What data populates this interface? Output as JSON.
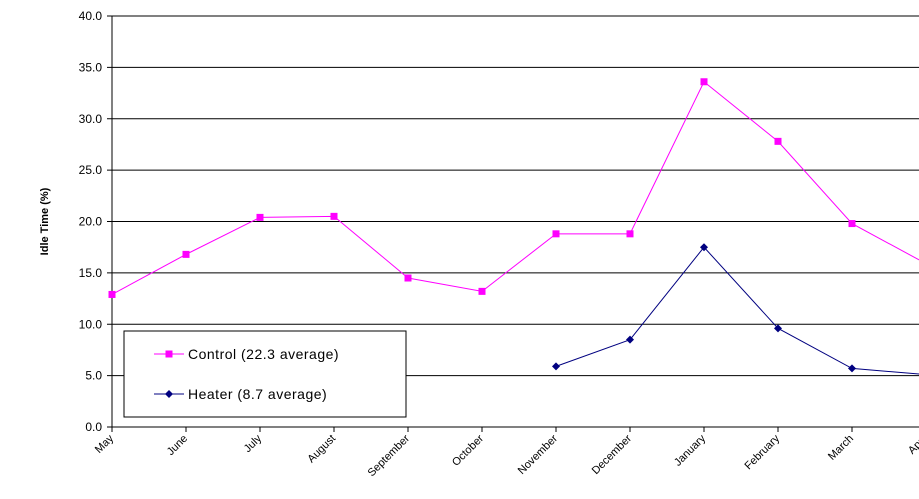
{
  "chart_data": {
    "type": "line",
    "ylabel": "Idle Time (%)",
    "ylim": [
      0,
      40
    ],
    "yticks": [
      "0.0",
      "5.0",
      "10.0",
      "15.0",
      "20.0",
      "25.0",
      "30.0",
      "35.0",
      "40.0"
    ],
    "categories": [
      "May",
      "June",
      "July",
      "August",
      "September",
      "October",
      "November",
      "December",
      "January",
      "February",
      "March",
      "April"
    ],
    "grid": true,
    "legend_placement": "bottom-left",
    "series": [
      {
        "name": "Control (22.3 average)",
        "color": "#ff00ff",
        "marker": "square",
        "values": [
          12.9,
          16.8,
          20.4,
          20.5,
          14.5,
          13.2,
          18.8,
          18.8,
          33.6,
          27.8,
          19.8,
          15.9
        ]
      },
      {
        "name": "Heater (8.7 average)",
        "color": "#000080",
        "marker": "diamond",
        "values": [
          null,
          null,
          null,
          null,
          null,
          null,
          5.9,
          8.5,
          17.5,
          9.6,
          5.7,
          5.1
        ]
      }
    ]
  }
}
